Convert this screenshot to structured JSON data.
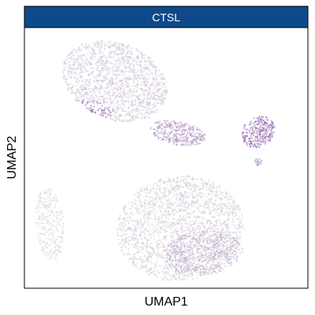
{
  "chart_data": {
    "type": "scatter",
    "title": "CTSL",
    "xlabel": "UMAP1",
    "ylabel": "UMAP2",
    "xlim": [
      -10,
      10
    ],
    "ylim": [
      -10,
      10
    ],
    "grid": false,
    "legend": "none",
    "colors": {
      "strip": "#0E4A8B",
      "low": "#E2E2E2",
      "high": "#7B3F9C",
      "frame": "#000000"
    },
    "clusters": [
      {
        "name": "top-left-large",
        "cx": -3.6,
        "cy": 5.9,
        "rx": 3.9,
        "ry": 2.9,
        "rot": -28,
        "n": 1600,
        "level": 0.15,
        "tint": [
          -6.2,
          3.6,
          2.6,
          0.9
        ]
      },
      {
        "name": "mid-small",
        "cx": 0.8,
        "cy": 1.9,
        "rx": 2.0,
        "ry": 0.9,
        "rot": -12,
        "n": 350,
        "level": 0.45
      },
      {
        "name": "right-small",
        "cx": 6.5,
        "cy": 2.0,
        "rx": 1.1,
        "ry": 1.3,
        "rot": -35,
        "n": 260,
        "level": 0.75
      },
      {
        "name": "tiny-right",
        "cx": 6.5,
        "cy": -0.3,
        "rx": 0.25,
        "ry": 0.3,
        "rot": 0,
        "n": 25,
        "level": 0.45
      },
      {
        "name": "left-small",
        "cx": -8.2,
        "cy": -5.1,
        "rx": 1.0,
        "ry": 2.8,
        "rot": 5,
        "n": 330,
        "level": 0.05
      },
      {
        "name": "bottom-large",
        "cx": 1.0,
        "cy": -5.4,
        "rx": 4.5,
        "ry": 4.0,
        "rot": 12,
        "n": 2200,
        "level": 0.12
      },
      {
        "name": "bottom-purple-tint",
        "cx": 2.6,
        "cy": -7.3,
        "rx": 2.8,
        "ry": 1.7,
        "rot": 8,
        "n": 600,
        "level": 0.3
      }
    ]
  }
}
